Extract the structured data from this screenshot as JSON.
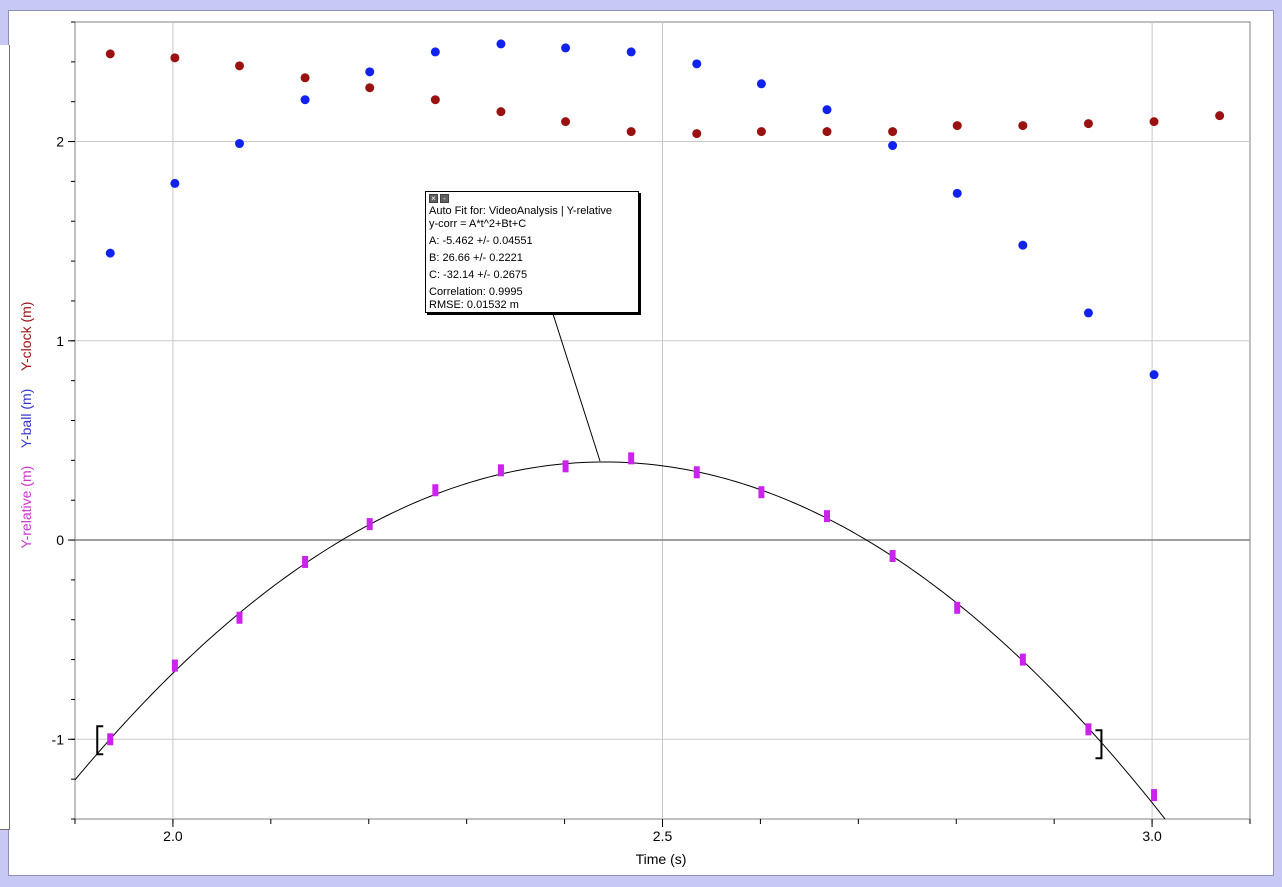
{
  "chart_data": {
    "type": "scatter",
    "xlabel": "Time (s)",
    "ylabel_parts": [
      {
        "text": "Y-relative (m)",
        "color": "#cc33cc"
      },
      {
        "text": "Y-ball (m)",
        "color": "#3333cc"
      },
      {
        "text": "Y-clock (m)",
        "color": "#991111"
      }
    ],
    "xlim": [
      1.9,
      3.1
    ],
    "ylim": [
      -1.4,
      2.6
    ],
    "x_ticks": [
      {
        "value": 2.0,
        "label": "2.0"
      },
      {
        "value": 2.5,
        "label": "2.5"
      },
      {
        "value": 3.0,
        "label": "3.0"
      }
    ],
    "y_ticks": [
      {
        "value": -1,
        "label": "-1"
      },
      {
        "value": 0,
        "label": "0"
      },
      {
        "value": 1,
        "label": "1"
      },
      {
        "value": 2,
        "label": "2"
      }
    ],
    "grid": true,
    "series": [
      {
        "key": "y_relative",
        "color": "#cc22ee",
        "marker": "bar",
        "x": [
          1.936,
          2.002,
          2.068,
          2.135,
          2.201,
          2.268,
          2.335,
          2.401,
          2.468,
          2.535,
          2.601,
          2.668,
          2.735,
          2.801,
          2.868,
          2.935,
          3.002
        ],
        "y": [
          -1.0,
          -0.63,
          -0.39,
          -0.11,
          0.08,
          0.25,
          0.35,
          0.37,
          0.41,
          0.34,
          0.24,
          0.12,
          -0.08,
          -0.34,
          -0.6,
          -0.95,
          -1.28
        ]
      },
      {
        "key": "y_ball",
        "color": "#1122ee",
        "marker": "dot",
        "x": [
          1.936,
          2.002,
          2.068,
          2.135,
          2.201,
          2.268,
          2.335,
          2.401,
          2.468,
          2.535,
          2.601,
          2.668,
          2.735,
          2.801,
          2.868,
          2.935,
          3.002
        ],
        "y": [
          1.44,
          1.79,
          1.99,
          2.21,
          2.35,
          2.45,
          2.49,
          2.47,
          2.45,
          2.39,
          2.29,
          2.16,
          1.98,
          1.74,
          1.48,
          1.14,
          0.83
        ]
      },
      {
        "key": "y_clock",
        "color": "#991111",
        "marker": "dot",
        "x": [
          1.936,
          2.002,
          2.068,
          2.135,
          2.201,
          2.268,
          2.335,
          2.401,
          2.468,
          2.535,
          2.601,
          2.668,
          2.735,
          2.801,
          2.868,
          2.935,
          3.002,
          3.069
        ],
        "y": [
          2.44,
          2.42,
          2.38,
          2.32,
          2.27,
          2.21,
          2.15,
          2.1,
          2.05,
          2.04,
          2.05,
          2.05,
          2.05,
          2.08,
          2.08,
          2.09,
          2.1,
          2.13
        ]
      }
    ],
    "fit": {
      "A": -5.462,
      "B": 26.66,
      "C": -32.14,
      "x_range": [
        1.9,
        3.015
      ],
      "bracket_left": 1.936,
      "bracket_right": 2.935,
      "bracket_y": -1.0
    }
  },
  "fit_box": {
    "close_icon": "close-icon",
    "minimize_icon": "minimize-icon",
    "line1": "Auto Fit for: VideoAnalysis | Y-relative",
    "line2": "y-corr = A*t^2+Bt+C",
    "line3": "A: -5.462 +/- 0.04551",
    "line4": "B: 26.66 +/- 0.2221",
    "line5": "C: -32.14 +/- 0.2675",
    "line6": "Correlation: 0.9995",
    "line7": "RMSE: 0.01532 m"
  },
  "colors": {
    "background": "#c8c8f4",
    "panel": "#ffffff",
    "grid": "#c8c8c8",
    "zero_line": "#808080"
  }
}
